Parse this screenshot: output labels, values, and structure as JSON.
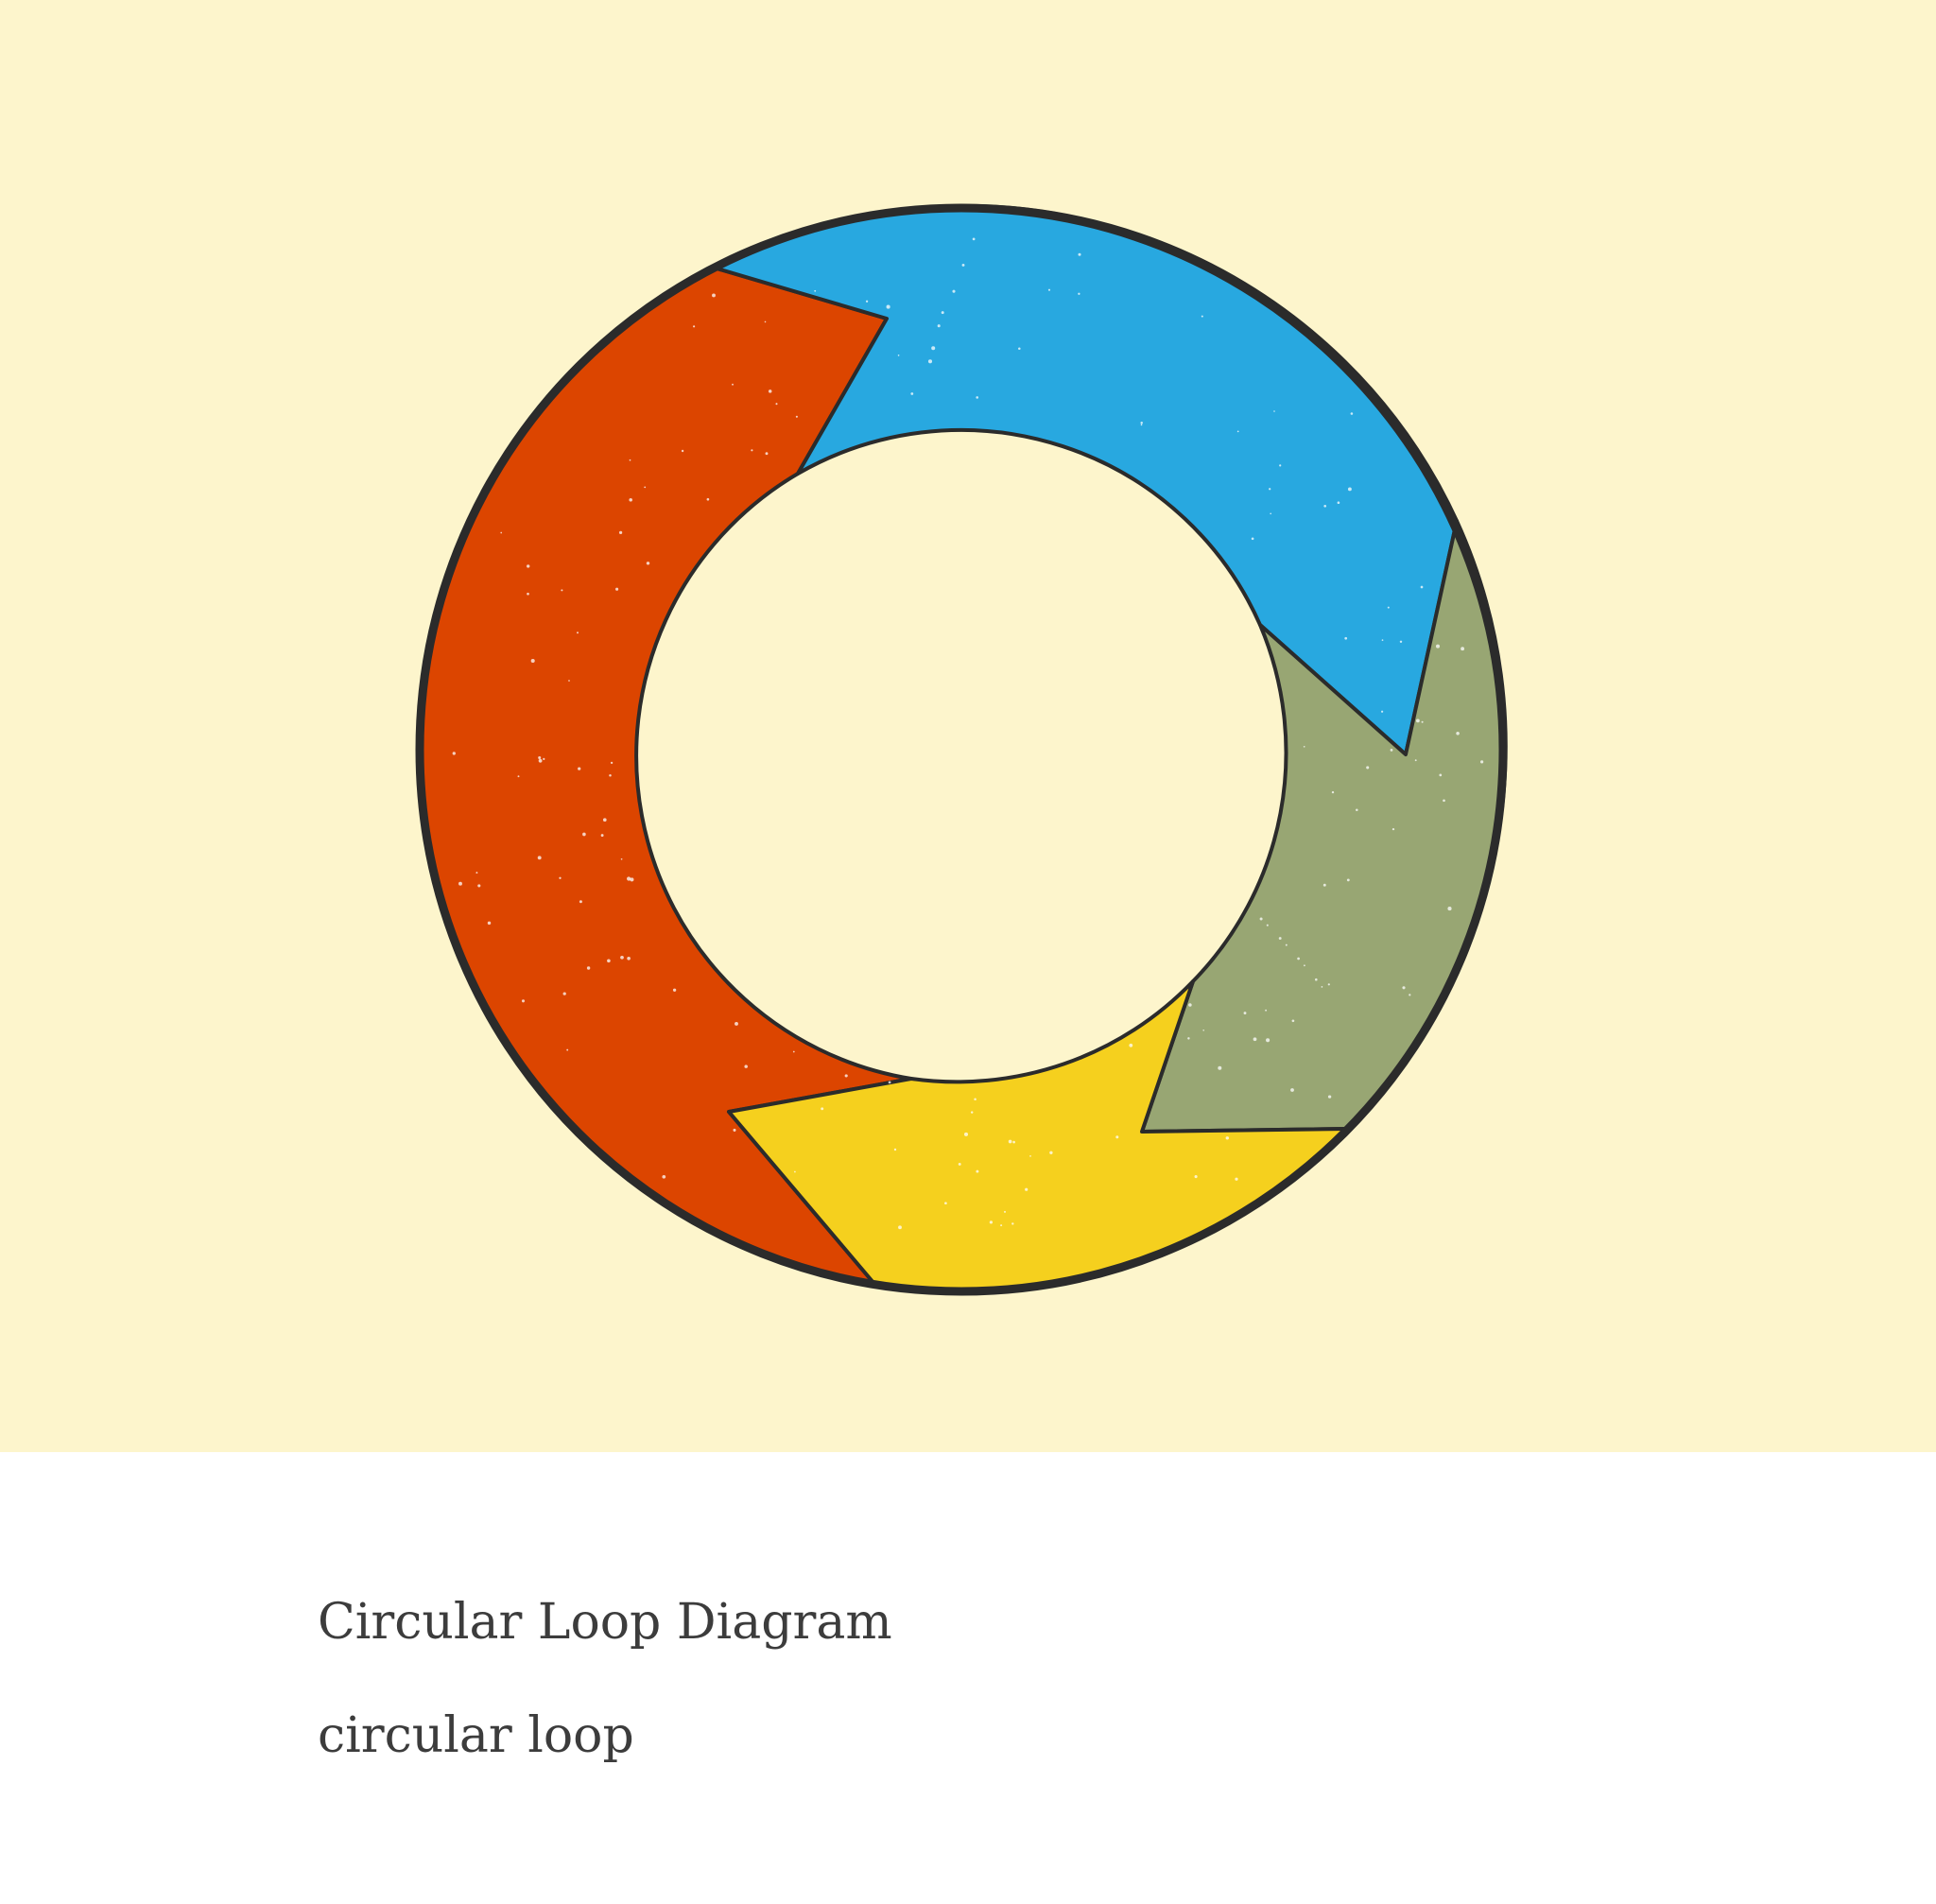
{
  "diagram": {
    "segments": [
      {
        "name": "red",
        "color": "#dc4500"
      },
      {
        "name": "blue",
        "color": "#28a8e0"
      },
      {
        "name": "green",
        "color": "#98a673"
      },
      {
        "name": "yellow",
        "color": "#f5d01e"
      }
    ],
    "background_color": "#fdf5cc",
    "outline_color": "#2b2b2b"
  },
  "caption": {
    "title": "Circular Loop Diagram",
    "subtitle": "circular loop"
  }
}
